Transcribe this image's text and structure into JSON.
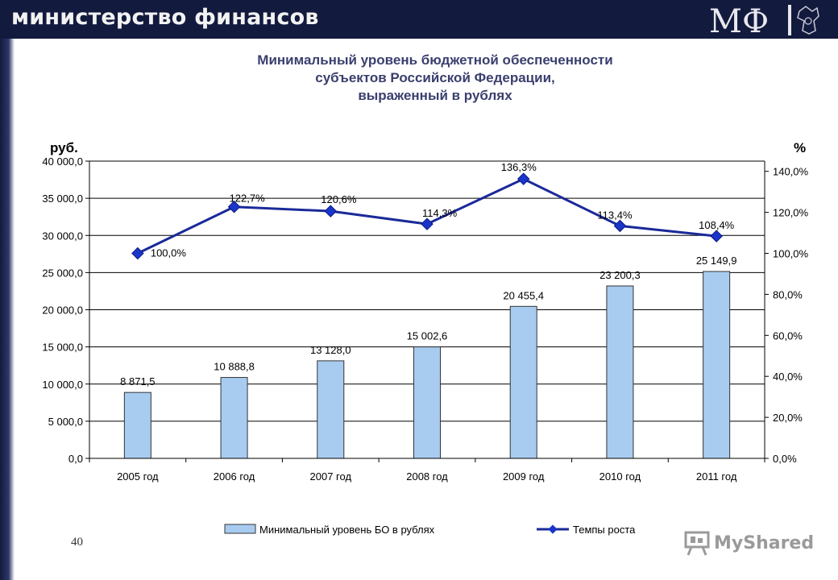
{
  "header": {
    "title": "министерство финансов",
    "logo_text": "МФ"
  },
  "slide": {
    "title_lines": [
      "Минимальный уровень бюджетной обеспеченности",
      "субъектов Российской Федерации,",
      "выраженный в рублях"
    ],
    "page_number": "40"
  },
  "watermark": {
    "text": "MyShared",
    "icon": "presentation-board-icon"
  },
  "colors": {
    "header_bg": "#121a3e",
    "bar_fill": "#a8ccf0",
    "bar_stroke": "#333333",
    "line": "#1a2a99",
    "marker": "#1a35c9",
    "title": "#3a3f6e"
  },
  "chart_data": {
    "type": "bar+line",
    "categories": [
      "2005 год",
      "2006 год",
      "2007 год",
      "2008 год",
      "2009 год",
      "2010 год",
      "2011 год"
    ],
    "series": [
      {
        "name": "Минимальный уровень БО в рублях",
        "type": "bar",
        "axis": "left",
        "values": [
          8871.5,
          10888.8,
          13128.0,
          15002.6,
          20455.4,
          23200.3,
          25149.9
        ],
        "labels": [
          "8 871,5",
          "10 888,8",
          "13 128,0",
          "15 002,6",
          "20 455,4",
          "23 200,3",
          "25 149,9"
        ]
      },
      {
        "name": "Темпы роста",
        "type": "line",
        "axis": "right",
        "values": [
          100.0,
          122.7,
          120.6,
          114.3,
          136.3,
          113.4,
          108.4
        ],
        "labels": [
          "100,0%",
          "122,7%",
          "120,6%",
          "114,3%",
          "136,3%",
          "113,4%",
          "108,4%"
        ]
      }
    ],
    "y_left": {
      "unit": "руб.",
      "range": [
        0,
        40000
      ],
      "ticks": [
        0,
        5000,
        10000,
        15000,
        20000,
        25000,
        30000,
        35000,
        40000
      ],
      "tick_labels": [
        "0,0",
        "5 000,0",
        "10 000,0",
        "15 000,0",
        "20 000,0",
        "25 000,0",
        "30 000,0",
        "35 000,0",
        "40 000,0"
      ]
    },
    "y_right": {
      "unit": "%",
      "range": [
        0,
        145
      ],
      "ticks": [
        0,
        20,
        40,
        60,
        80,
        100,
        120,
        140
      ],
      "tick_labels": [
        "0,0%",
        "20,0%",
        "40,0%",
        "60,0%",
        "80,0%",
        "100,0%",
        "120,0%",
        "140,0%"
      ]
    },
    "grid": true,
    "legend": "bottom"
  }
}
